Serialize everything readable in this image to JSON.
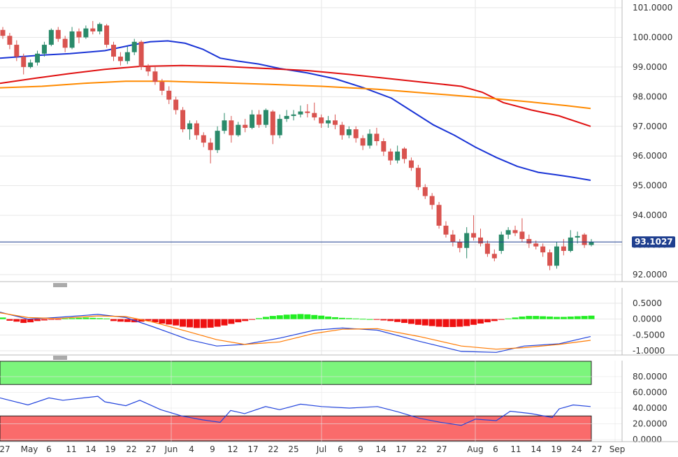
{
  "chart_data": {
    "type": "candlestick",
    "main_panel": {
      "y_ticks": [
        "101.0000",
        "100.0000",
        "99.0000",
        "98.0000",
        "97.0000",
        "96.0000",
        "95.0000",
        "94.0000",
        "93.0000",
        "92.0000"
      ],
      "y_tick_values": [
        101,
        100,
        99,
        98,
        97,
        96,
        95,
        94,
        93,
        92
      ],
      "ylim": [
        91.8,
        101.2
      ],
      "current_price": "93.1027",
      "current_price_value": 93.1027,
      "candles": [
        [
          100.25,
          100.05,
          100.35,
          99.95
        ],
        [
          100.05,
          99.75,
          100.15,
          99.6
        ],
        [
          99.75,
          99.35,
          99.9,
          99.2
        ],
        [
          99.35,
          99.0,
          99.45,
          98.75
        ],
        [
          99.0,
          99.15,
          99.25,
          98.95
        ],
        [
          99.15,
          99.45,
          99.55,
          99.05
        ],
        [
          99.45,
          99.75,
          99.85,
          99.35
        ],
        [
          99.75,
          100.25,
          100.3,
          99.7
        ],
        [
          100.25,
          99.95,
          100.35,
          99.85
        ],
        [
          99.95,
          99.65,
          100.05,
          99.5
        ],
        [
          99.65,
          100.2,
          100.35,
          99.6
        ],
        [
          100.2,
          100.0,
          100.3,
          99.8
        ],
        [
          100.0,
          100.3,
          100.4,
          99.95
        ],
        [
          100.3,
          100.2,
          100.55,
          100.1
        ],
        [
          100.2,
          100.45,
          100.5,
          100.1
        ],
        [
          100.4,
          99.75,
          100.45,
          99.65
        ],
        [
          99.75,
          99.35,
          99.85,
          99.2
        ],
        [
          99.35,
          99.2,
          99.5,
          99.05
        ],
        [
          99.2,
          99.5,
          99.7,
          99.1
        ],
        [
          99.5,
          99.85,
          99.95,
          99.4
        ],
        [
          99.85,
          99.0,
          99.9,
          98.9
        ],
        [
          99.0,
          98.85,
          99.1,
          98.7
        ],
        [
          98.85,
          98.5,
          99.0,
          98.4
        ],
        [
          98.5,
          98.2,
          98.6,
          98.05
        ],
        [
          98.2,
          97.9,
          98.35,
          97.75
        ],
        [
          97.9,
          97.55,
          98.0,
          97.4
        ],
        [
          97.55,
          96.9,
          97.65,
          96.8
        ],
        [
          96.9,
          97.1,
          97.2,
          96.55
        ],
        [
          97.1,
          96.7,
          97.2,
          96.55
        ],
        [
          96.7,
          96.45,
          96.8,
          96.3
        ],
        [
          96.45,
          96.2,
          96.6,
          95.75
        ],
        [
          96.2,
          96.85,
          97.0,
          96.1
        ],
        [
          96.85,
          97.2,
          97.45,
          96.75
        ],
        [
          97.2,
          96.7,
          97.35,
          96.45
        ],
        [
          96.7,
          97.05,
          97.15,
          96.65
        ],
        [
          97.05,
          96.95,
          97.25,
          96.8
        ],
        [
          96.95,
          97.4,
          97.55,
          96.9
        ],
        [
          97.4,
          97.05,
          97.55,
          96.95
        ],
        [
          97.05,
          97.55,
          97.6,
          96.95
        ],
        [
          97.5,
          96.7,
          97.55,
          96.4
        ],
        [
          96.7,
          97.25,
          97.4,
          96.6
        ],
        [
          97.25,
          97.35,
          97.55,
          97.15
        ],
        [
          97.35,
          97.4,
          97.55,
          97.2
        ],
        [
          97.4,
          97.5,
          97.7,
          97.3
        ],
        [
          97.5,
          97.45,
          97.75,
          97.3
        ],
        [
          97.45,
          97.3,
          97.8,
          97.2
        ],
        [
          97.3,
          97.1,
          97.4,
          96.95
        ],
        [
          97.1,
          97.2,
          97.35,
          96.95
        ],
        [
          97.2,
          97.05,
          97.4,
          96.9
        ],
        [
          97.05,
          96.7,
          97.15,
          96.55
        ],
        [
          96.7,
          96.9,
          97.0,
          96.6
        ],
        [
          96.9,
          96.6,
          97.0,
          96.45
        ],
        [
          96.6,
          96.35,
          96.7,
          96.2
        ],
        [
          96.35,
          96.75,
          96.9,
          96.25
        ],
        [
          96.75,
          96.5,
          96.95,
          96.35
        ],
        [
          96.5,
          96.15,
          96.6,
          96.0
        ],
        [
          96.15,
          95.85,
          96.25,
          95.7
        ],
        [
          95.85,
          96.15,
          96.35,
          95.75
        ],
        [
          96.25,
          95.9,
          96.3,
          95.75
        ],
        [
          95.85,
          95.6,
          95.95,
          95.5
        ],
        [
          95.6,
          94.95,
          95.7,
          94.85
        ],
        [
          94.95,
          94.65,
          95.05,
          94.55
        ],
        [
          94.65,
          94.35,
          94.75,
          94.2
        ],
        [
          94.35,
          93.65,
          94.45,
          93.55
        ],
        [
          93.65,
          93.35,
          93.8,
          93.25
        ],
        [
          93.35,
          93.1,
          93.5,
          92.95
        ],
        [
          93.1,
          92.9,
          93.2,
          92.75
        ],
        [
          92.9,
          93.4,
          93.6,
          92.55
        ],
        [
          93.4,
          93.25,
          94.0,
          93.15
        ],
        [
          93.25,
          93.05,
          93.55,
          92.95
        ],
        [
          93.05,
          92.7,
          93.15,
          92.6
        ],
        [
          92.7,
          92.55,
          92.85,
          92.45
        ],
        [
          92.8,
          93.35,
          93.45,
          92.7
        ],
        [
          93.35,
          93.5,
          93.6,
          93.2
        ],
        [
          93.5,
          93.4,
          93.65,
          93.3
        ],
        [
          93.45,
          93.2,
          93.9,
          93.1
        ],
        [
          93.2,
          93.05,
          93.35,
          92.9
        ],
        [
          93.05,
          92.95,
          93.15,
          92.85
        ],
        [
          92.95,
          92.75,
          93.05,
          92.6
        ],
        [
          92.75,
          92.3,
          92.85,
          92.15
        ],
        [
          92.3,
          92.95,
          93.1,
          92.2
        ],
        [
          92.95,
          92.8,
          93.2,
          92.65
        ],
        [
          92.8,
          93.25,
          93.5,
          92.75
        ],
        [
          93.25,
          93.3,
          93.45,
          93.05
        ],
        [
          93.35,
          93.0,
          93.4,
          92.9
        ],
        [
          93.0,
          93.1,
          93.2,
          92.95
        ]
      ],
      "ma_series": [
        {
          "color": "#1a34d6",
          "points": [
            [
              0,
              99.3
            ],
            [
              60,
              99.4
            ],
            [
              100,
              99.45
            ],
            [
              150,
              99.55
            ],
            [
              190,
              99.75
            ],
            [
              215,
              99.85
            ],
            [
              240,
              99.88
            ],
            [
              265,
              99.8
            ],
            [
              290,
              99.6
            ],
            [
              315,
              99.3
            ],
            [
              340,
              99.2
            ],
            [
              370,
              99.1
            ],
            [
              400,
              98.95
            ],
            [
              440,
              98.8
            ],
            [
              480,
              98.6
            ],
            [
              520,
              98.3
            ],
            [
              560,
              97.95
            ],
            [
              590,
              97.5
            ],
            [
              620,
              97.05
            ],
            [
              650,
              96.7
            ],
            [
              680,
              96.3
            ],
            [
              710,
              95.95
            ],
            [
              740,
              95.65
            ],
            [
              770,
              95.45
            ],
            [
              800,
              95.35
            ],
            [
              820,
              95.28
            ],
            [
              845,
              95.18
            ]
          ]
        },
        {
          "color": "#e01010",
          "points": [
            [
              0,
              98.45
            ],
            [
              50,
              98.62
            ],
            [
              100,
              98.78
            ],
            [
              150,
              98.92
            ],
            [
              200,
              99.02
            ],
            [
              260,
              99.05
            ],
            [
              320,
              99.02
            ],
            [
              380,
              98.95
            ],
            [
              440,
              98.88
            ],
            [
              500,
              98.75
            ],
            [
              560,
              98.6
            ],
            [
              620,
              98.45
            ],
            [
              660,
              98.35
            ],
            [
              690,
              98.15
            ],
            [
              720,
              97.8
            ],
            [
              760,
              97.55
            ],
            [
              800,
              97.35
            ],
            [
              845,
              97.0
            ]
          ]
        },
        {
          "color": "#ff8a00",
          "points": [
            [
              0,
              98.3
            ],
            [
              60,
              98.35
            ],
            [
              120,
              98.45
            ],
            [
              180,
              98.52
            ],
            [
              240,
              98.52
            ],
            [
              300,
              98.48
            ],
            [
              380,
              98.42
            ],
            [
              460,
              98.35
            ],
            [
              540,
              98.25
            ],
            [
              620,
              98.1
            ],
            [
              700,
              97.95
            ],
            [
              760,
              97.82
            ],
            [
              810,
              97.7
            ],
            [
              845,
              97.6
            ]
          ]
        }
      ]
    },
    "macd_panel": {
      "y_ticks": [
        "0.5000",
        "0.0000",
        "-0.5000",
        "-1.0000"
      ],
      "y_tick_values": [
        0.5,
        0,
        -0.5,
        -1.0
      ],
      "ylim": [
        -1.1,
        0.7
      ],
      "histogram": [
        0.05,
        -0.05,
        -0.08,
        -0.12,
        -0.1,
        -0.06,
        -0.04,
        -0.02,
        -0.01,
        0.02,
        0.03,
        0.04,
        0.05,
        0.04,
        0.03,
        0.02,
        -0.06,
        -0.08,
        -0.09,
        -0.1,
        -0.08,
        -0.05,
        -0.1,
        -0.14,
        -0.17,
        -0.2,
        -0.24,
        -0.26,
        -0.28,
        -0.28,
        -0.27,
        -0.24,
        -0.2,
        -0.15,
        -0.1,
        -0.06,
        -0.02,
        0.03,
        0.07,
        0.1,
        0.12,
        0.14,
        0.15,
        0.16,
        0.15,
        0.13,
        0.11,
        0.08,
        0.06,
        0.04,
        0.03,
        0.02,
        0.01,
        0.0,
        -0.02,
        -0.04,
        -0.06,
        -0.09,
        -0.12,
        -0.15,
        -0.18,
        -0.2,
        -0.22,
        -0.24,
        -0.25,
        -0.25,
        -0.24,
        -0.22,
        -0.18,
        -0.14,
        -0.1,
        -0.06,
        -0.02,
        0.02,
        0.05,
        0.08,
        0.1,
        0.1,
        0.09,
        0.08,
        0.07,
        0.07,
        0.08,
        0.09,
        0.1,
        0.11
      ],
      "macd_line": [
        [
          0,
          0.22
        ],
        [
          40,
          0.0
        ],
        [
          80,
          0.05
        ],
        [
          140,
          0.15
        ],
        [
          180,
          0.05
        ],
        [
          220,
          -0.25
        ],
        [
          270,
          -0.65
        ],
        [
          310,
          -0.85
        ],
        [
          350,
          -0.8
        ],
        [
          400,
          -0.6
        ],
        [
          450,
          -0.35
        ],
        [
          490,
          -0.28
        ],
        [
          540,
          -0.35
        ],
        [
          600,
          -0.7
        ],
        [
          660,
          -1.02
        ],
        [
          710,
          -1.05
        ],
        [
          750,
          -0.85
        ],
        [
          800,
          -0.78
        ],
        [
          845,
          -0.55
        ]
      ],
      "signal_line": [
        [
          0,
          0.2
        ],
        [
          40,
          0.05
        ],
        [
          80,
          0.02
        ],
        [
          140,
          0.1
        ],
        [
          180,
          0.08
        ],
        [
          220,
          -0.1
        ],
        [
          270,
          -0.4
        ],
        [
          310,
          -0.65
        ],
        [
          350,
          -0.8
        ],
        [
          400,
          -0.72
        ],
        [
          450,
          -0.45
        ],
        [
          490,
          -0.32
        ],
        [
          540,
          -0.3
        ],
        [
          600,
          -0.55
        ],
        [
          660,
          -0.85
        ],
        [
          710,
          -0.95
        ],
        [
          750,
          -0.9
        ],
        [
          800,
          -0.8
        ],
        [
          845,
          -0.67
        ]
      ]
    },
    "rsi_panel": {
      "y_ticks": [
        "80.0000",
        "60.0000",
        "40.0000",
        "20.0000",
        "0.0000"
      ],
      "y_tick_values": [
        80,
        60,
        40,
        20,
        0
      ],
      "ylim": [
        0,
        100
      ],
      "overbought_zone": [
        70,
        100
      ],
      "oversold_zone": [
        0,
        30
      ],
      "rsi_line": [
        [
          0,
          53
        ],
        [
          40,
          44
        ],
        [
          70,
          53
        ],
        [
          90,
          50
        ],
        [
          120,
          53
        ],
        [
          140,
          55
        ],
        [
          150,
          48
        ],
        [
          180,
          43
        ],
        [
          200,
          50
        ],
        [
          230,
          38
        ],
        [
          260,
          30
        ],
        [
          290,
          25
        ],
        [
          315,
          22
        ],
        [
          330,
          37
        ],
        [
          350,
          33
        ],
        [
          380,
          42
        ],
        [
          400,
          38
        ],
        [
          430,
          45
        ],
        [
          460,
          42
        ],
        [
          500,
          40
        ],
        [
          540,
          42
        ],
        [
          570,
          35
        ],
        [
          600,
          27
        ],
        [
          630,
          22
        ],
        [
          660,
          18
        ],
        [
          680,
          26
        ],
        [
          710,
          24
        ],
        [
          730,
          36
        ],
        [
          760,
          33
        ],
        [
          790,
          28
        ],
        [
          800,
          39
        ],
        [
          820,
          44
        ],
        [
          845,
          42
        ]
      ]
    },
    "x_ticks": [
      "27",
      "May",
      "6",
      "11",
      "14",
      "19",
      "22",
      "27",
      "Jun",
      "4",
      "9",
      "12",
      "17",
      "22",
      "25",
      "Jul",
      "6",
      "9",
      "14",
      "17",
      "22",
      "27",
      "Aug",
      "6",
      "11",
      "14",
      "19",
      "24",
      "27",
      "Sep"
    ]
  }
}
